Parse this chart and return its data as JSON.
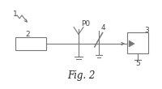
{
  "fig_label": "Fig. 2",
  "background": "#ffffff",
  "line_color": "#777777",
  "text_color": "#444444",
  "label_fontsize": 6.5,
  "fig_label_fontsize": 8.5,
  "figsize": [
    2.0,
    1.1
  ],
  "dpi": 100
}
